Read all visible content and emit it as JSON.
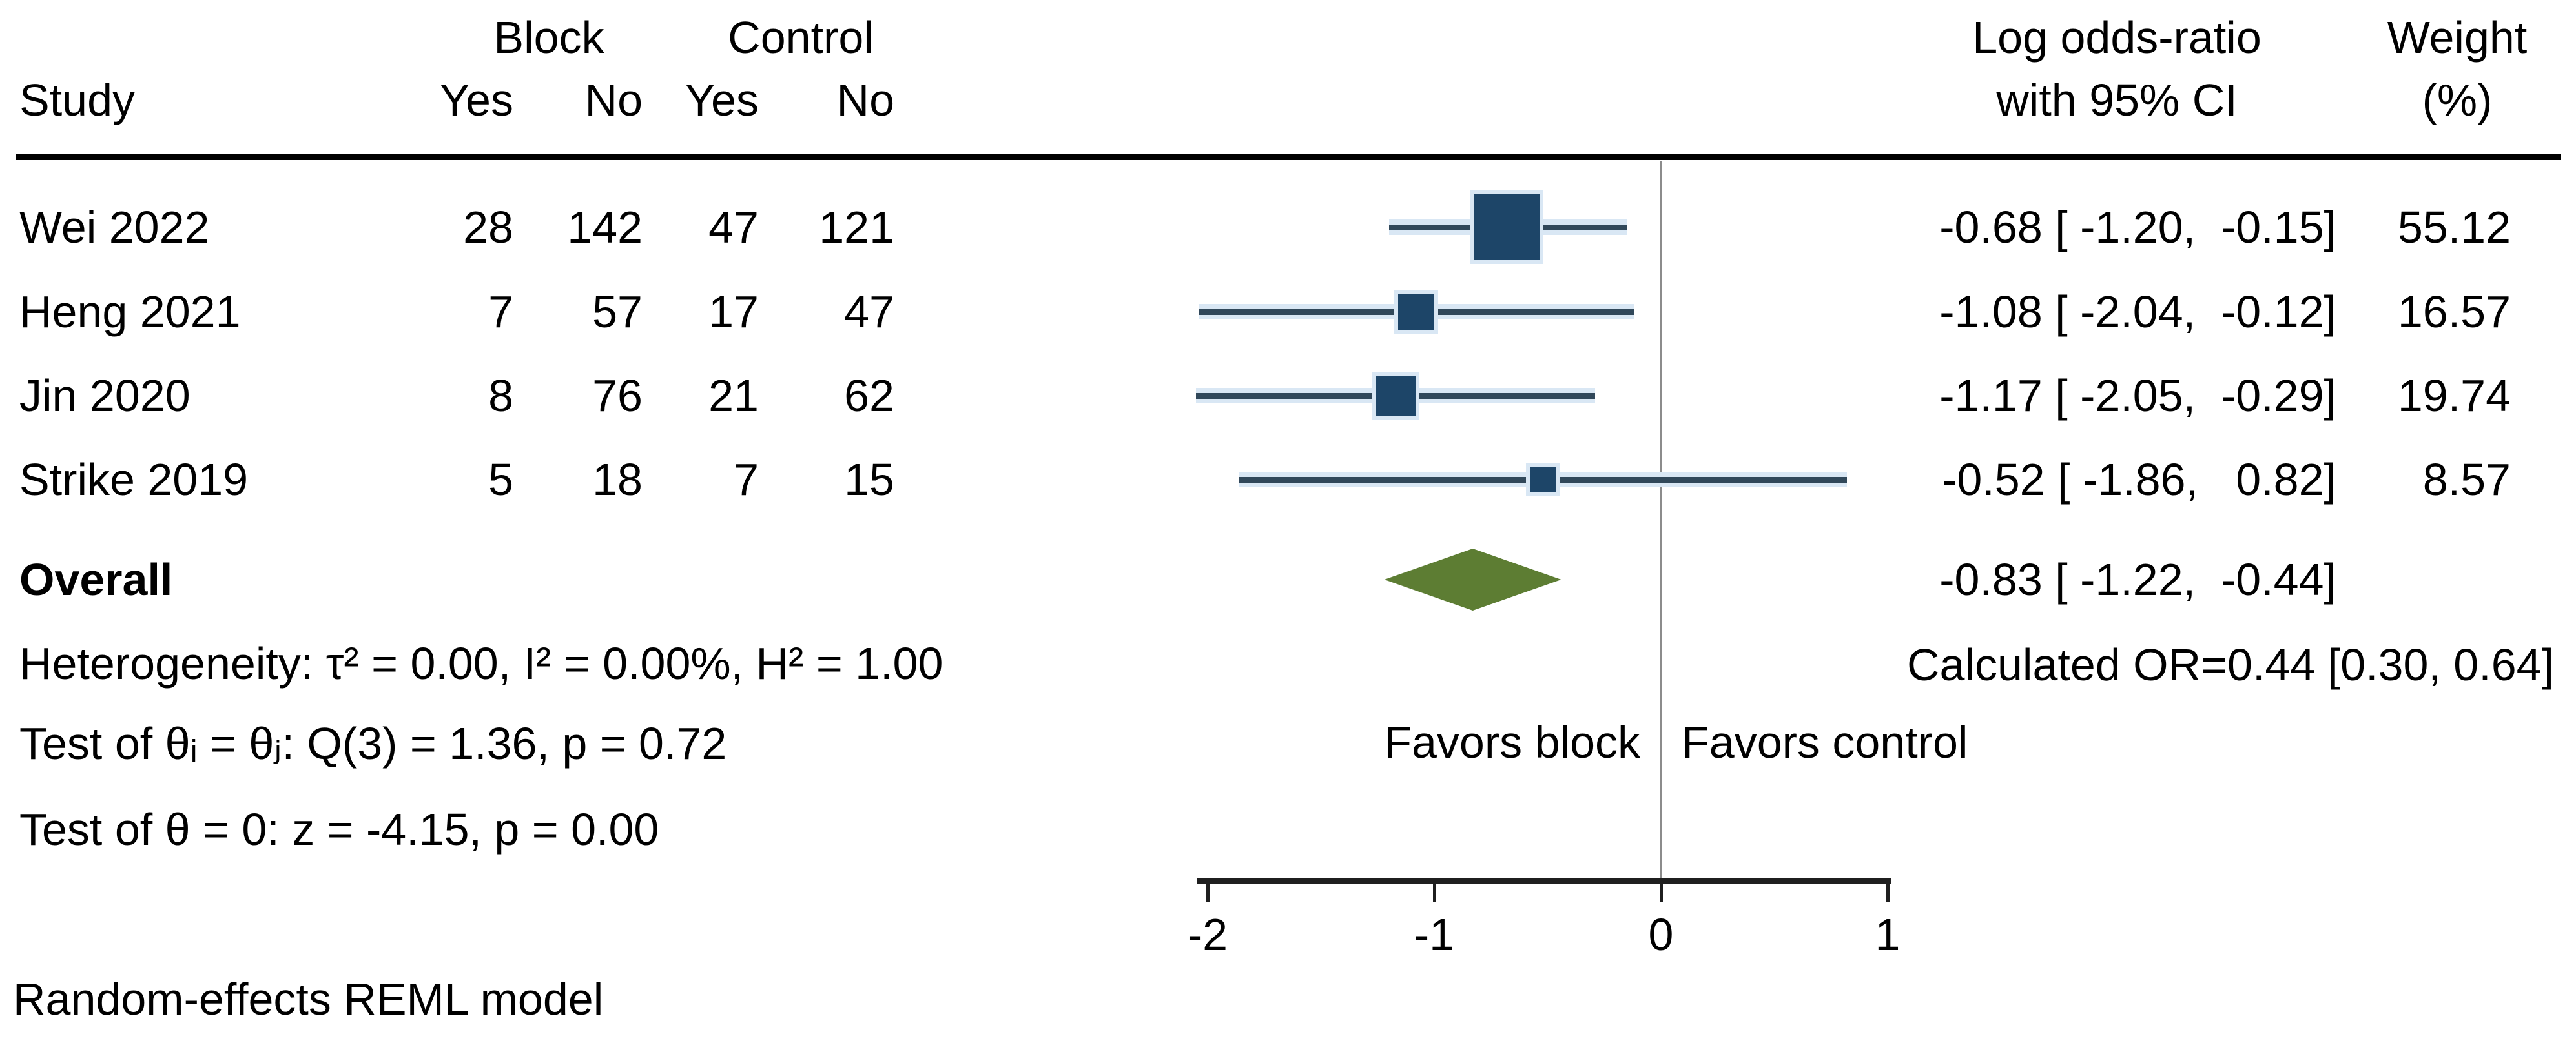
{
  "header": {
    "study": "Study",
    "block_group": "Block",
    "control_group": "Control",
    "block_yes": "Yes",
    "block_no": "No",
    "control_yes": "Yes",
    "control_no": "No",
    "effect_line1": "Log odds-ratio",
    "effect_line2": "with 95% CI",
    "weight_line1": "Weight",
    "weight_line2": "(%)"
  },
  "overall": {
    "label": "Overall",
    "effect_text": "-0.83 [ -1.22,  -0.44]",
    "calculated_or": "Calculated OR=0.44 [0.30, 0.64]"
  },
  "stats": {
    "heterogeneity": "Heterogeneity: τ² = 0.00, I² = 0.00%, H² = 1.00",
    "test_between": "Test of θᵢ = θⱼ: Q(3) = 1.36, p = 0.72",
    "test_zero": "Test of θ = 0: z = -4.15, p = 0.00"
  },
  "favors": {
    "left": "Favors block",
    "right": "Favors control"
  },
  "footnote": "Random-effects REML model",
  "colors": {
    "marker": "#1d4568",
    "ci_line": "#31485a",
    "ci_halo": "#d9e7f4",
    "diamond": "#5d7d33",
    "zero_line": "#8c8c8c",
    "axis": "#1f1f1f",
    "text": "#000000"
  },
  "chart_data": {
    "type": "forest",
    "effect_measure": "Log odds-ratio",
    "model_note": "Random-effects REML model",
    "x_axis": {
      "ticks": [
        -2,
        -1,
        0,
        1
      ],
      "range": [
        -2.1,
        1.05
      ],
      "zero_line": 0
    },
    "columns": [
      "Study",
      "Block Yes",
      "Block No",
      "Control Yes",
      "Control No",
      "Log odds-ratio with 95% CI",
      "Weight (%)"
    ],
    "studies": [
      {
        "name": "Wei 2022",
        "block_yes": 28,
        "block_no": 142,
        "control_yes": 47,
        "control_no": 121,
        "effect": -0.68,
        "ci_low": -1.2,
        "ci_high": -0.15,
        "weight": 55.12,
        "effect_text": "-0.68 [ -1.20,  -0.15]",
        "weight_text": "55.12"
      },
      {
        "name": "Heng 2021",
        "block_yes": 7,
        "block_no": 57,
        "control_yes": 17,
        "control_no": 47,
        "effect": -1.08,
        "ci_low": -2.04,
        "ci_high": -0.12,
        "weight": 16.57,
        "effect_text": "-1.08 [ -2.04,  -0.12]",
        "weight_text": "16.57"
      },
      {
        "name": "Jin 2020",
        "block_yes": 8,
        "block_no": 76,
        "control_yes": 21,
        "control_no": 62,
        "effect": -1.17,
        "ci_low": -2.05,
        "ci_high": -0.29,
        "weight": 19.74,
        "effect_text": "-1.17 [ -2.05,  -0.29]",
        "weight_text": "19.74"
      },
      {
        "name": "Strike 2019",
        "block_yes": 5,
        "block_no": 18,
        "control_yes": 7,
        "control_no": 15,
        "effect": -0.52,
        "ci_low": -1.86,
        "ci_high": 0.82,
        "weight": 8.57,
        "effect_text": "-0.52 [ -1.86,   0.82]",
        "weight_text": "8.57"
      }
    ],
    "overall": {
      "effect": -0.83,
      "ci_low": -1.22,
      "ci_high": -0.44,
      "effect_text": "-0.83 [ -1.22,  -0.44]"
    },
    "heterogeneity": {
      "tau2": 0.0,
      "I2_pct": 0.0,
      "H2": 1.0,
      "Q_df": 3,
      "Q": 1.36,
      "Q_p": 0.72,
      "z": -4.15,
      "z_p": 0.0
    },
    "calculated_or": {
      "or": 0.44,
      "ci_low": 0.3,
      "ci_high": 0.64
    }
  }
}
